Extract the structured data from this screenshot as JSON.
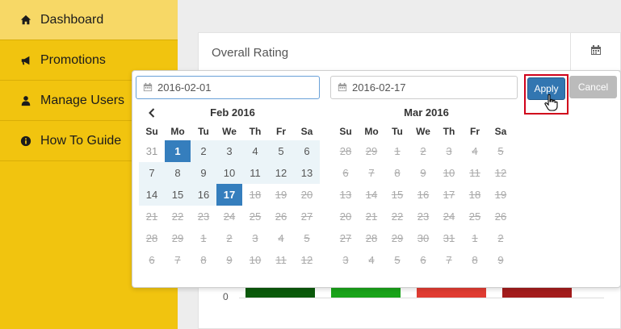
{
  "sidebar": {
    "items": [
      {
        "label": "Dashboard",
        "icon": "home-icon",
        "active": true
      },
      {
        "label": "Promotions",
        "icon": "bullhorn-icon"
      },
      {
        "label": "Manage Users",
        "icon": "user-icon"
      },
      {
        "label": "How To Guide",
        "icon": "info-circle-icon"
      }
    ]
  },
  "panel": {
    "title": "Overall Rating",
    "axis_zero": "0",
    "bar_colors": [
      "#0b5a0b",
      "#1aa31a",
      "#e03c32",
      "#a31c1c"
    ]
  },
  "picker": {
    "start_value": "2016-02-01",
    "end_value": "2016-02-17",
    "apply_label": "Apply",
    "cancel_label": "Cancel",
    "dow": [
      "Su",
      "Mo",
      "Tu",
      "We",
      "Th",
      "Fr",
      "Sa"
    ],
    "left": {
      "title": "Feb 2016",
      "weeks": [
        [
          "31",
          "1",
          "2",
          "3",
          "4",
          "5",
          "6"
        ],
        [
          "7",
          "8",
          "9",
          "10",
          "11",
          "12",
          "13"
        ],
        [
          "14",
          "15",
          "16",
          "17",
          "18",
          "19",
          "20"
        ],
        [
          "21",
          "22",
          "23",
          "24",
          "25",
          "26",
          "27"
        ],
        [
          "28",
          "29",
          "1",
          "2",
          "3",
          "4",
          "5"
        ],
        [
          "6",
          "7",
          "8",
          "9",
          "10",
          "11",
          "12"
        ]
      ]
    },
    "right": {
      "title": "Mar 2016",
      "weeks": [
        [
          "28",
          "29",
          "1",
          "2",
          "3",
          "4",
          "5"
        ],
        [
          "6",
          "7",
          "8",
          "9",
          "10",
          "11",
          "12"
        ],
        [
          "13",
          "14",
          "15",
          "16",
          "17",
          "18",
          "19"
        ],
        [
          "20",
          "21",
          "22",
          "23",
          "24",
          "25",
          "26"
        ],
        [
          "27",
          "28",
          "29",
          "30",
          "31",
          "1",
          "2"
        ],
        [
          "3",
          "4",
          "5",
          "6",
          "7",
          "8",
          "9"
        ]
      ]
    }
  }
}
